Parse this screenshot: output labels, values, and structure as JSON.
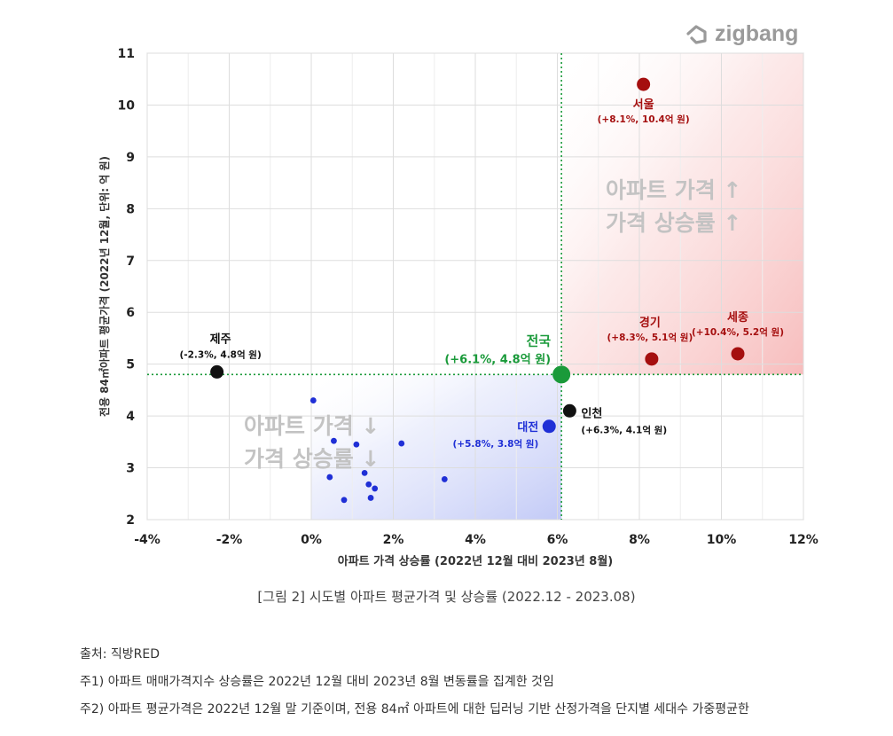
{
  "brand": {
    "name": "zigbang"
  },
  "caption": "[그림 2] 시도별 아파트 평균가격 및 상승률 (2022.12 - 2023.08)",
  "notes": [
    "출처: 직방RED",
    "주1) 아파트 매매가격지수 상승률은 2022년 12월 대비 2023년 8월 변동률을 집계한 것임",
    "주2) 아파트 평균가격은 2022년 12월 말 기준이며, 전용 84㎡ 아파트에 대한 딥러닝 기반 산정가격을 단지별 세대수 가중평균한"
  ],
  "colors": {
    "up": "#a50f0f",
    "down": "#1f2fd6",
    "national": "#1a9a3a",
    "black": "#111111",
    "grid": "#dddddd",
    "watermark": "#c3c3c3"
  },
  "chart_data": {
    "type": "scatter",
    "xlabel": "아파트 가격 상승률 (2022년 12월 대비 2023년 8월)",
    "ylabel": "전용 84㎡아파트 평균가격 (2022년 12월, 단위: 억 원)",
    "xlim": [
      -4,
      12
    ],
    "ylim": [
      2,
      11
    ],
    "x_ticks": [
      -4,
      -2,
      0,
      2,
      4,
      6,
      8,
      10,
      12
    ],
    "x_tick_labels": [
      "-4%",
      "-2%",
      "0%",
      "2%",
      "4%",
      "6%",
      "8%",
      "10%",
      "12%"
    ],
    "y_ticks": [
      2,
      3,
      4,
      5,
      6,
      7,
      8,
      9,
      10,
      11
    ],
    "y_tick_labels": [
      "2",
      "3",
      "4",
      "5",
      "6",
      "7",
      "8",
      "9",
      "10",
      "11"
    ],
    "grid": true,
    "reference_lines": {
      "x": 6.1,
      "y": 4.8
    },
    "quadrant_labels": {
      "up": [
        "아파트 가격 ↑",
        "가격 상승률 ↑"
      ],
      "down": [
        "아파트 가격 ↓",
        "가격 상승률 ↓"
      ]
    },
    "labeled_points": [
      {
        "name": "서울",
        "x": 8.1,
        "y": 10.4,
        "label": "(+8.1%, 10.4억 원)",
        "group": "up"
      },
      {
        "name": "경기",
        "x": 8.3,
        "y": 5.1,
        "label": "(+8.3%, 5.1억 원)",
        "group": "up"
      },
      {
        "name": "세종",
        "x": 10.4,
        "y": 5.2,
        "label": "(+10.4%, 5.2억 원)",
        "group": "up"
      },
      {
        "name": "전국",
        "x": 6.1,
        "y": 4.8,
        "label": "(+6.1%, 4.8억 원)",
        "group": "national"
      },
      {
        "name": "인천",
        "x": 6.3,
        "y": 4.1,
        "label": "(+6.3%, 4.1억 원)",
        "group": "black"
      },
      {
        "name": "제주",
        "x": -2.3,
        "y": 4.85,
        "label": "(-2.3%, 4.8억 원)",
        "group": "black"
      },
      {
        "name": "대전",
        "x": 5.8,
        "y": 3.8,
        "label": "(+5.8%, 3.8억 원)",
        "group": "down"
      }
    ],
    "other_points": [
      {
        "x": 0.05,
        "y": 4.3
      },
      {
        "x": 0.55,
        "y": 3.52
      },
      {
        "x": 1.1,
        "y": 3.45
      },
      {
        "x": 2.2,
        "y": 3.47
      },
      {
        "x": 0.45,
        "y": 2.82
      },
      {
        "x": 1.3,
        "y": 2.9
      },
      {
        "x": 1.4,
        "y": 2.68
      },
      {
        "x": 1.55,
        "y": 2.6
      },
      {
        "x": 1.45,
        "y": 2.42
      },
      {
        "x": 0.8,
        "y": 2.38
      },
      {
        "x": 3.25,
        "y": 2.78
      }
    ]
  }
}
